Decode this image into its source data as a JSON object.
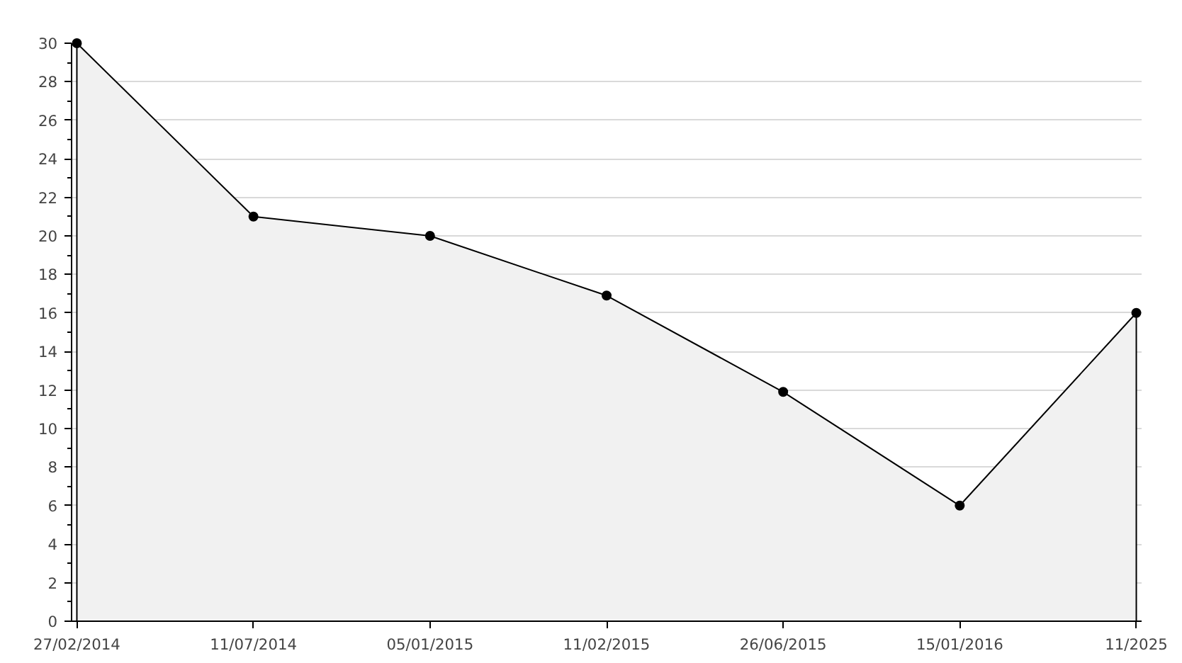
{
  "chart_data": {
    "type": "area",
    "categories": [
      "27/02/2014",
      "11/07/2014",
      "05/01/2015",
      "11/02/2015",
      "26/06/2015",
      "15/01/2016",
      "11/2025"
    ],
    "values": [
      30,
      21,
      20,
      16.9,
      11.9,
      6,
      16
    ],
    "color": "#f1f1f1",
    "ylim": [
      0,
      30
    ],
    "yticks": [
      0,
      2,
      4,
      6,
      8,
      10,
      12,
      14,
      16,
      18,
      20,
      22,
      24,
      26,
      28,
      30
    ],
    "grid": "y",
    "marker": "circle"
  }
}
